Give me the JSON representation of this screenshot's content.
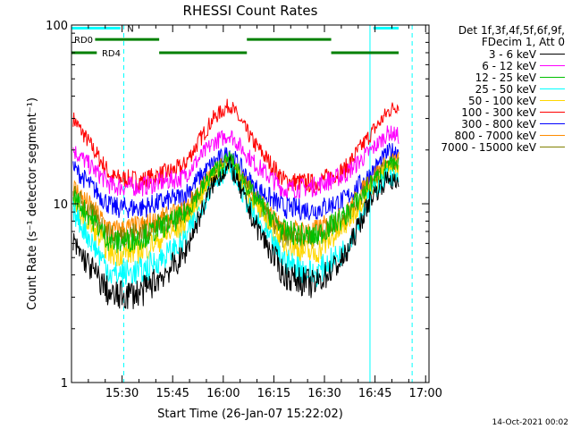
{
  "chart_data": {
    "type": "line",
    "title": "RHESSI Count Rates",
    "xlabel": "Start Time (26-Jan-07 15:22:02)",
    "ylabel": "Count Rate (s⁻¹ detector segment⁻¹)",
    "yscale": "log",
    "ylim": [
      1,
      100
    ],
    "ytick_labels": [
      "1",
      "10",
      "100"
    ],
    "x_range_minutes": [
      15.0,
      112.0
    ],
    "x_ticks": [
      {
        "label": "15:30",
        "value": 30
      },
      {
        "label": "15:45",
        "value": 45
      },
      {
        "label": "16:00",
        "value": 60
      },
      {
        "label": "16:15",
        "value": 75
      },
      {
        "label": "16:30",
        "value": 90
      },
      {
        "label": "16:45",
        "value": 105
      },
      {
        "label": "17:00",
        "value": 120
      }
    ],
    "legend_header": [
      "Det 1f,3f,4f,5f,6f,9f,",
      "FDecim 1, Att 0"
    ],
    "series": [
      {
        "name": "3 - 6 keV",
        "color": "#000000",
        "values": [
          6.0,
          3.0,
          3.2,
          5.0,
          13.0,
          16.5,
          8.0,
          4.0,
          3.5,
          5.0,
          11.0,
          14.0,
          12.5
        ]
      },
      {
        "name": "6 - 12 keV",
        "color": "#ff00ff",
        "values": [
          20.0,
          12.5,
          12.5,
          14.0,
          22.0,
          24.5,
          17.0,
          12.0,
          12.5,
          14.5,
          20.0,
          25.0,
          24.0
        ]
      },
      {
        "name": "12 - 25 keV",
        "color": "#00c000",
        "values": [
          11.0,
          6.0,
          6.5,
          8.5,
          15.0,
          18.0,
          11.0,
          7.0,
          6.5,
          8.5,
          13.0,
          16.5,
          16.0
        ]
      },
      {
        "name": "25 - 50 keV",
        "color": "#00ffff",
        "values": [
          9.0,
          4.0,
          4.2,
          6.0,
          13.0,
          16.0,
          8.5,
          4.8,
          4.0,
          5.5,
          11.5,
          14.5,
          13.5
        ]
      },
      {
        "name": "50 - 100 keV",
        "color": "#ffd700",
        "values": [
          10.0,
          5.2,
          5.5,
          7.5,
          14.5,
          17.0,
          10.0,
          6.0,
          5.2,
          7.5,
          12.5,
          15.5,
          15.0
        ]
      },
      {
        "name": "100 - 300 keV",
        "color": "#ff0000",
        "values": [
          30.0,
          14.0,
          13.5,
          16.0,
          30.0,
          36.0,
          22.0,
          13.5,
          13.0,
          15.5,
          25.0,
          33.0,
          36.0
        ]
      },
      {
        "name": "300 - 800 keV",
        "color": "#0000ff",
        "values": [
          16.0,
          9.5,
          9.5,
          11.0,
          17.0,
          19.5,
          12.5,
          9.5,
          9.2,
          10.5,
          15.0,
          19.5,
          20.0
        ]
      },
      {
        "name": "800 - 7000 keV",
        "color": "#ff8c00",
        "values": [
          12.5,
          7.0,
          7.5,
          9.0,
          15.0,
          17.5,
          11.0,
          7.0,
          7.0,
          8.5,
          14.0,
          17.0,
          17.5
        ]
      },
      {
        "name": "7000 - 15000 keV",
        "color": "#808000",
        "values": [
          11.5,
          6.5,
          7.0,
          8.5,
          14.5,
          17.0,
          10.5,
          6.5,
          6.5,
          8.0,
          13.5,
          16.5,
          17.0
        ]
      }
    ],
    "series_x_minutes": [
      15.5,
      27,
      36,
      48,
      57,
      62,
      69,
      78,
      87,
      96,
      104,
      109,
      112
    ],
    "annotations": {
      "flags": [
        {
          "label": "N",
          "color": "#00ffff",
          "segments": [
            [
              15.0,
              29.5
            ],
            [
              104.5,
              112.0
            ]
          ],
          "level": 96
        },
        {
          "label": "RD0",
          "color": "#008000",
          "segments": [
            [
              22.0,
              41.0
            ],
            [
              67.0,
              92.0
            ]
          ],
          "level": 83
        },
        {
          "label": "RD4",
          "color": "#008000",
          "segments": [
            [
              15.0,
              22.5
            ],
            [
              41.0,
              67.0
            ],
            [
              92.0,
              112.0
            ]
          ],
          "level": 70
        }
      ],
      "vertical_lines": [
        {
          "x": 15.0,
          "style": "solid",
          "color": "#00ffff"
        },
        {
          "x": 30.5,
          "style": "dashed",
          "color": "#00ffff"
        },
        {
          "x": 103.5,
          "style": "solid",
          "color": "#00ffff"
        },
        {
          "x": 116.0,
          "style": "dashed",
          "color": "#00ffff"
        }
      ]
    }
  },
  "timestamp": "14-Oct-2021 00:02"
}
